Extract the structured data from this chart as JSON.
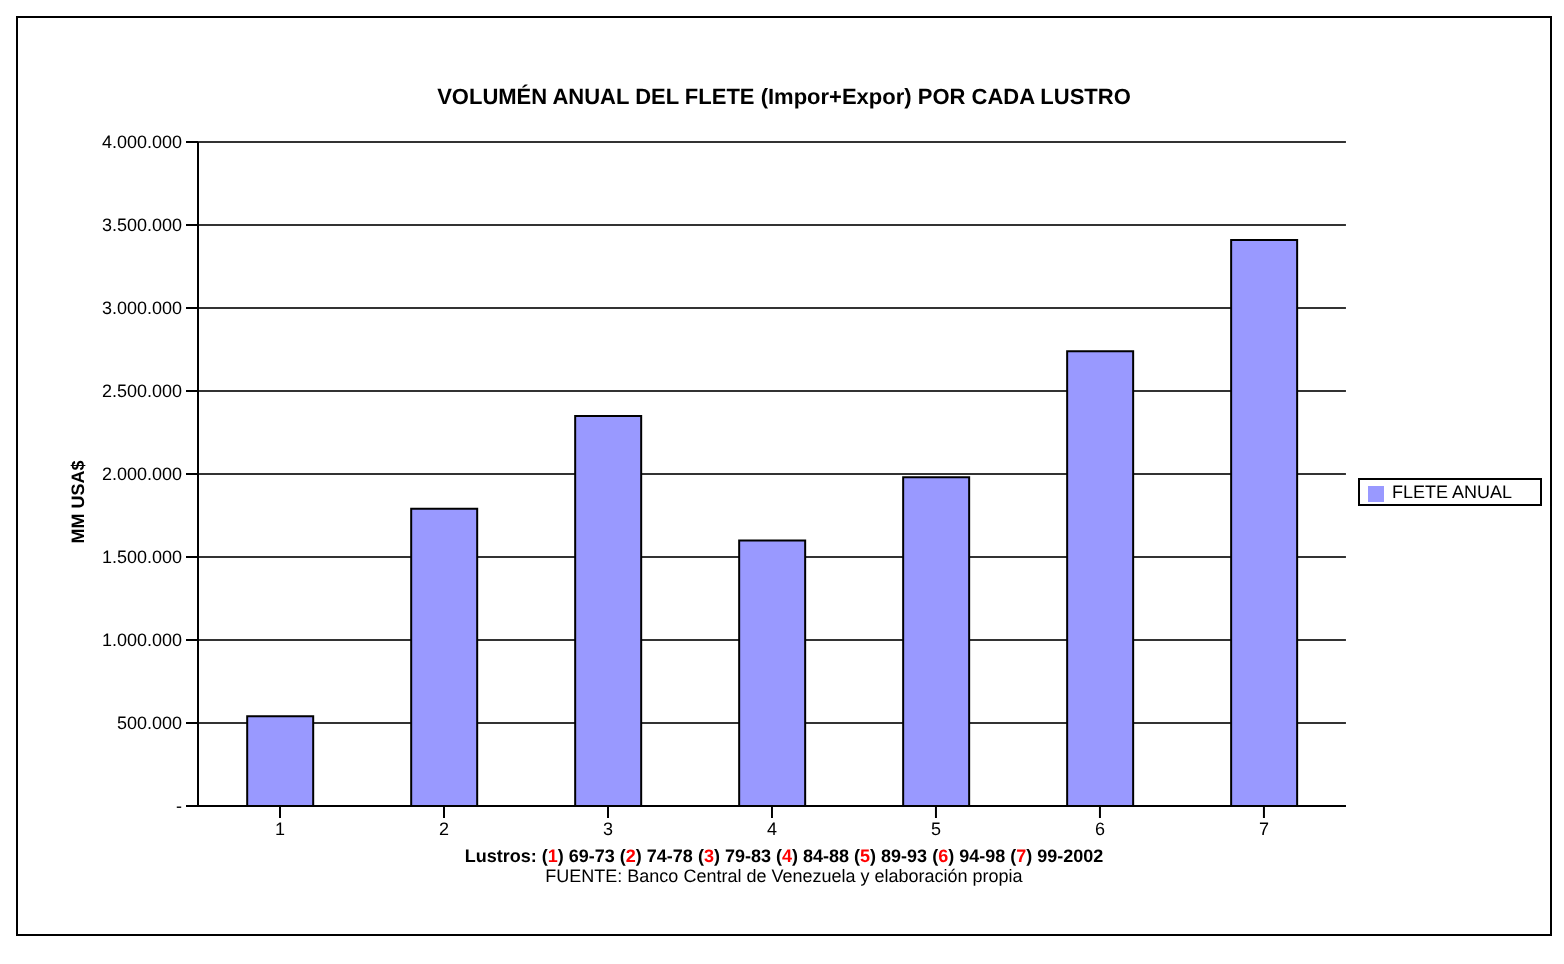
{
  "chart_data": {
    "type": "bar",
    "title": "VOLUMÉN ANUAL DEL FLETE (Impor+Expor)  POR CADA LUSTRO",
    "categories": [
      "1",
      "2",
      "3",
      "4",
      "5",
      "6",
      "7"
    ],
    "series": [
      {
        "name": "FLETE ANUAL",
        "color": "#9999ff",
        "values": [
          540000,
          1790000,
          2350000,
          1600000,
          1980000,
          2740000,
          3410000
        ]
      }
    ],
    "ylabel": "MM USA$",
    "xlabel": "Lustros: (1) 69-73 (2) 74-78 (3) 79-83 (4) 84-88 (5) 89-93 (6) 94-98 (7) 99-2002",
    "annotations": [
      "FUENTE: Banco Central de Venezuela y elaboración propia"
    ],
    "ylim": [
      0,
      4000000
    ],
    "yticks": [
      {
        "value": 0,
        "label": "-"
      },
      {
        "value": 500000,
        "label": "500.000"
      },
      {
        "value": 1000000,
        "label": "1.000.000"
      },
      {
        "value": 1500000,
        "label": "1.500.000"
      },
      {
        "value": 2000000,
        "label": "2.000.000"
      },
      {
        "value": 2500000,
        "label": "2.500.000"
      },
      {
        "value": 3000000,
        "label": "3.000.000"
      },
      {
        "value": 3500000,
        "label": "3.500.000"
      },
      {
        "value": 4000000,
        "label": "4.000.000"
      }
    ],
    "grid": "y",
    "legend": "right"
  }
}
